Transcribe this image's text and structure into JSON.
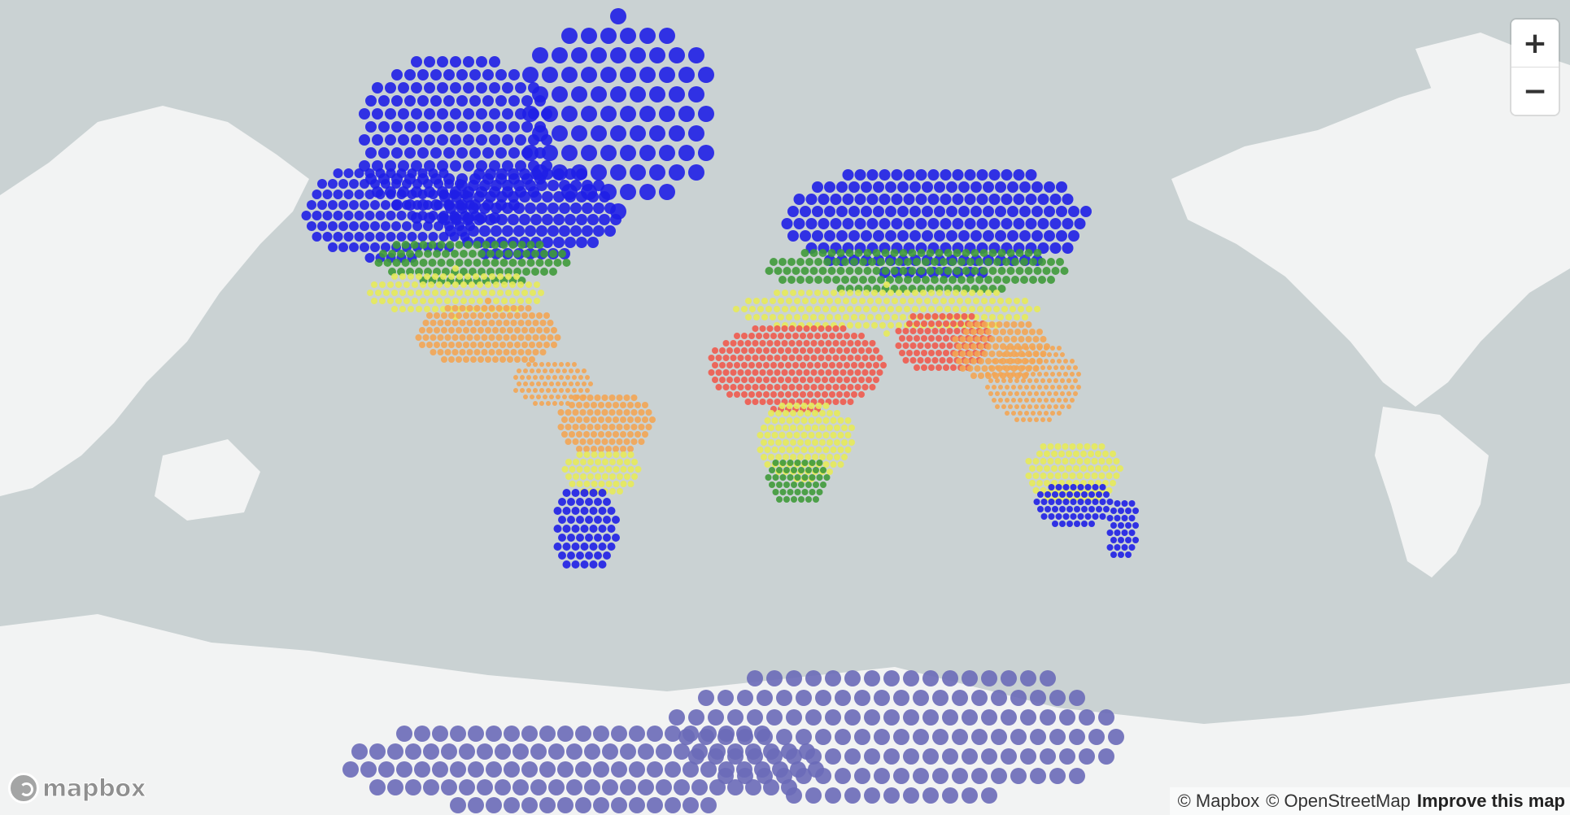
{
  "map": {
    "attribution": {
      "mapbox": "© Mapbox",
      "osm": "© OpenStreetMap",
      "improve": "Improve this map"
    },
    "logo_text": "mapbox",
    "controls": {
      "zoom_in": "+",
      "zoom_out": "−"
    },
    "colors": {
      "ocean": "#cad2d3",
      "land": "#f2f3f3",
      "cold": "#1f1fe6",
      "cool": "#3f9a3a",
      "mild": "#e7ea5a",
      "warm": "#f3a554",
      "hot": "#ef5a4e",
      "antarctic": "#6a6ab8"
    },
    "legend_note": ""
  }
}
